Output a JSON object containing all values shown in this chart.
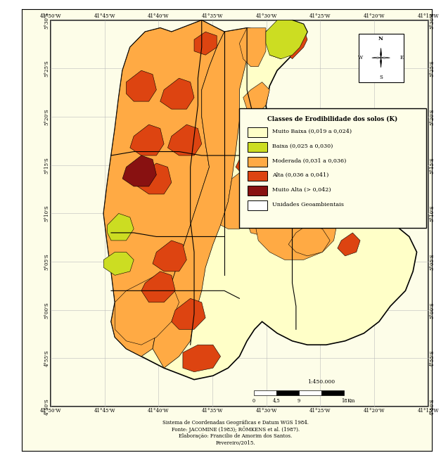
{
  "fig_width": 6.27,
  "fig_height": 6.54,
  "outer_bg_color": "#FFFFFF",
  "map_bg_color": "#FDFDE8",
  "grid_color": "#CCCCCC",
  "legend_title": "Classes de Erodibilidade dos solos (K)",
  "legend_items": [
    {
      "label": "Muito Baixa (0,019 a 0,024)",
      "color": "#FFFFC8"
    },
    {
      "label": "Baixa (0,025 a 0,030)",
      "color": "#CCDD22"
    },
    {
      "label": "Moderada (0,031 a 0,036)",
      "color": "#FFAA44"
    },
    {
      "label": "Alta (0,036 a 0,041)",
      "color": "#DD4411"
    },
    {
      "label": "Muito Alta (> 0,042)",
      "color": "#881111"
    },
    {
      "label": "Unidades Geoambientais",
      "color": "#FFFFFF"
    }
  ],
  "footnote_lines": [
    "Sistema de Coordenadas Geográficas e Datum WGS 1984.",
    "Fonte: JACOMINE (1983); RÖMKENS et al. (1987).",
    "Elaboração: Francilio de Amorim dos Santos.",
    "Fevereiro/2015."
  ],
  "x_ticks": [
    "41°50'W",
    "41°45'W",
    "41°40'W",
    "41°35'W",
    "41°30'W",
    "41°25'W",
    "41°20'W",
    "41°15'W"
  ],
  "y_ticks": [
    "4°50'S",
    "4°55'S",
    "5°00'S",
    "5°05'S",
    "5°10'S",
    "5°15'S",
    "5°20'S",
    "5°25'S",
    "5°30'S"
  ]
}
